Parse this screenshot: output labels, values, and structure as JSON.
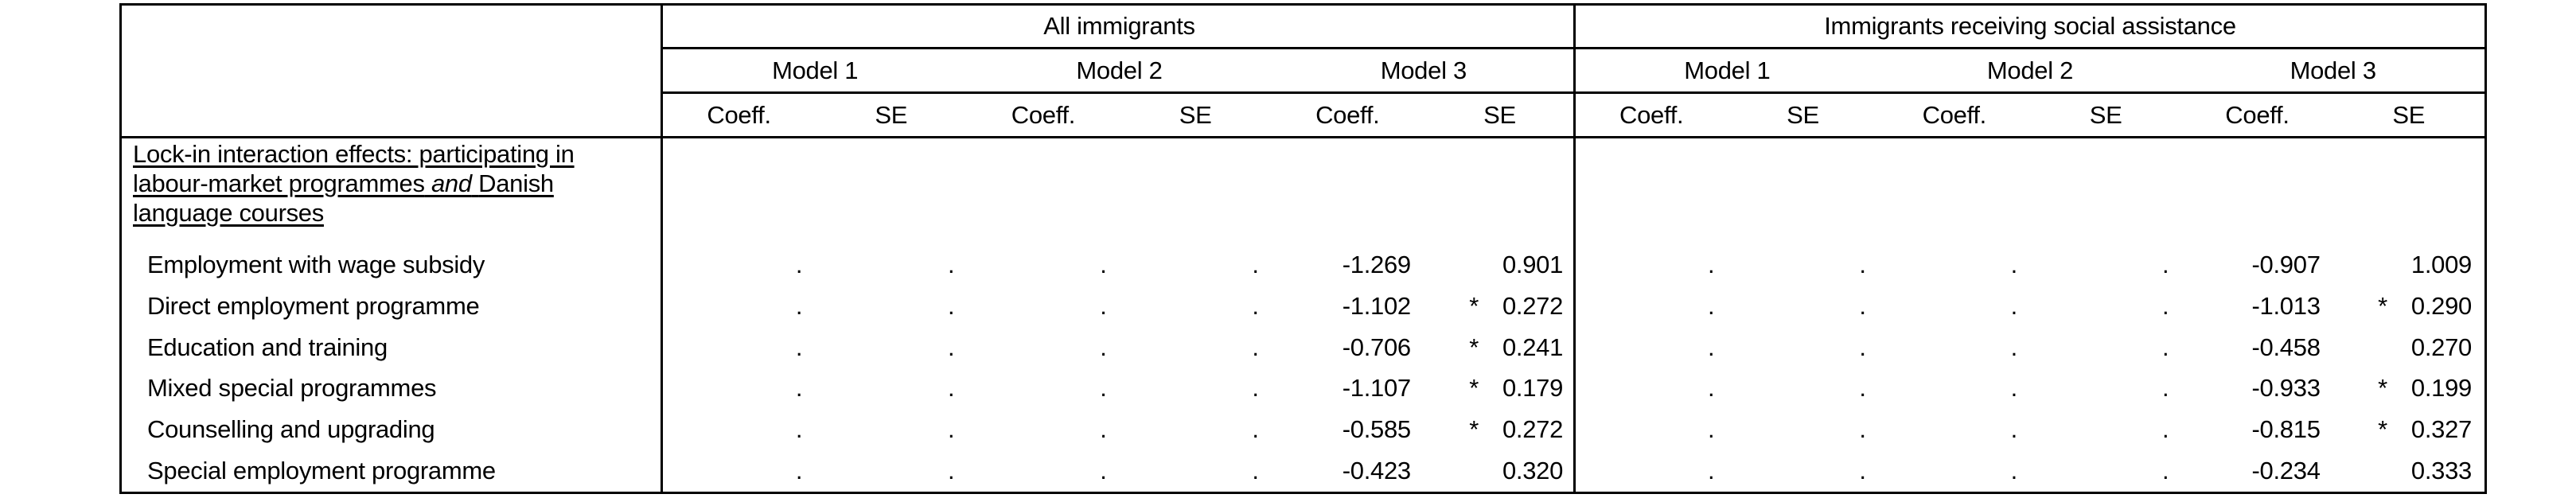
{
  "colors": {
    "background": "#ffffff",
    "text": "#000000",
    "border": "#000000"
  },
  "table": {
    "groups": [
      {
        "title": "All immigrants"
      },
      {
        "title": "Immigrants receiving social assistance"
      }
    ],
    "model_headers": [
      "Model 1",
      "Model 2",
      "Model 3"
    ],
    "stat_headers": {
      "coeff": "Coeff.",
      "se": "SE"
    },
    "section": {
      "line1": "Lock-in interaction effects: participating in",
      "line2_pre": "labour-market programmes",
      "line2_italic": "and",
      "line2_post": "Danish",
      "line3": "language courses"
    },
    "rows": [
      {
        "label": "Employment with wage subsidy",
        "cells": [
          {
            "coeff": ".",
            "star": "",
            "se": "."
          },
          {
            "coeff": ".",
            "star": "",
            "se": "."
          },
          {
            "coeff": "-1.269",
            "star": "",
            "se": "0.901"
          },
          {
            "coeff": ".",
            "star": "",
            "se": "."
          },
          {
            "coeff": ".",
            "star": "",
            "se": "."
          },
          {
            "coeff": "-0.907",
            "star": "",
            "se": "1.009"
          }
        ]
      },
      {
        "label": "Direct employment programme",
        "cells": [
          {
            "coeff": ".",
            "star": "",
            "se": "."
          },
          {
            "coeff": ".",
            "star": "",
            "se": "."
          },
          {
            "coeff": "-1.102",
            "star": "*",
            "se": "0.272"
          },
          {
            "coeff": ".",
            "star": "",
            "se": "."
          },
          {
            "coeff": ".",
            "star": "",
            "se": "."
          },
          {
            "coeff": "-1.013",
            "star": "*",
            "se": "0.290"
          }
        ]
      },
      {
        "label": "Education and training",
        "cells": [
          {
            "coeff": ".",
            "star": "",
            "se": "."
          },
          {
            "coeff": ".",
            "star": "",
            "se": "."
          },
          {
            "coeff": "-0.706",
            "star": "*",
            "se": "0.241"
          },
          {
            "coeff": ".",
            "star": "",
            "se": "."
          },
          {
            "coeff": ".",
            "star": "",
            "se": "."
          },
          {
            "coeff": "-0.458",
            "star": "",
            "se": "0.270"
          }
        ]
      },
      {
        "label": "Mixed special programmes",
        "cells": [
          {
            "coeff": ".",
            "star": "",
            "se": "."
          },
          {
            "coeff": ".",
            "star": "",
            "se": "."
          },
          {
            "coeff": "-1.107",
            "star": "*",
            "se": "0.179"
          },
          {
            "coeff": ".",
            "star": "",
            "se": "."
          },
          {
            "coeff": ".",
            "star": "",
            "se": "."
          },
          {
            "coeff": "-0.933",
            "star": "*",
            "se": "0.199"
          }
        ]
      },
      {
        "label": "Counselling and upgrading",
        "cells": [
          {
            "coeff": ".",
            "star": "",
            "se": "."
          },
          {
            "coeff": ".",
            "star": "",
            "se": "."
          },
          {
            "coeff": "-0.585",
            "star": "*",
            "se": "0.272"
          },
          {
            "coeff": ".",
            "star": "",
            "se": "."
          },
          {
            "coeff": ".",
            "star": "",
            "se": "."
          },
          {
            "coeff": "-0.815",
            "star": "*",
            "se": "0.327"
          }
        ]
      },
      {
        "label": "Special employment programme",
        "cells": [
          {
            "coeff": ".",
            "star": "",
            "se": "."
          },
          {
            "coeff": ".",
            "star": "",
            "se": "."
          },
          {
            "coeff": "-0.423",
            "star": "",
            "se": "0.320"
          },
          {
            "coeff": ".",
            "star": "",
            "se": "."
          },
          {
            "coeff": ".",
            "star": "",
            "se": "."
          },
          {
            "coeff": "-0.234",
            "star": "",
            "se": "0.333"
          }
        ]
      }
    ]
  }
}
